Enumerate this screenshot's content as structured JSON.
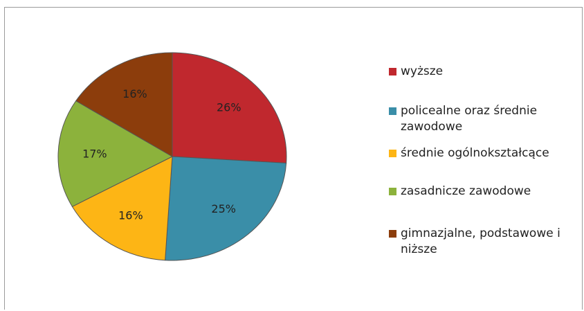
{
  "chart_data": {
    "type": "pie",
    "categories": [
      "wyższe",
      "policealne oraz średnie zawodowe",
      "średnie ogólnokształcące",
      "zasadnicze zawodowe",
      "gimnazjalne, podstawowe i niższe"
    ],
    "values": [
      26,
      25,
      16,
      17,
      16
    ],
    "value_labels": [
      "26%",
      "25%",
      "16%",
      "17%",
      "16%"
    ],
    "colors": [
      "#c0282e",
      "#3a8ea8",
      "#fdb515",
      "#8cb23c",
      "#8c3d0c"
    ]
  }
}
